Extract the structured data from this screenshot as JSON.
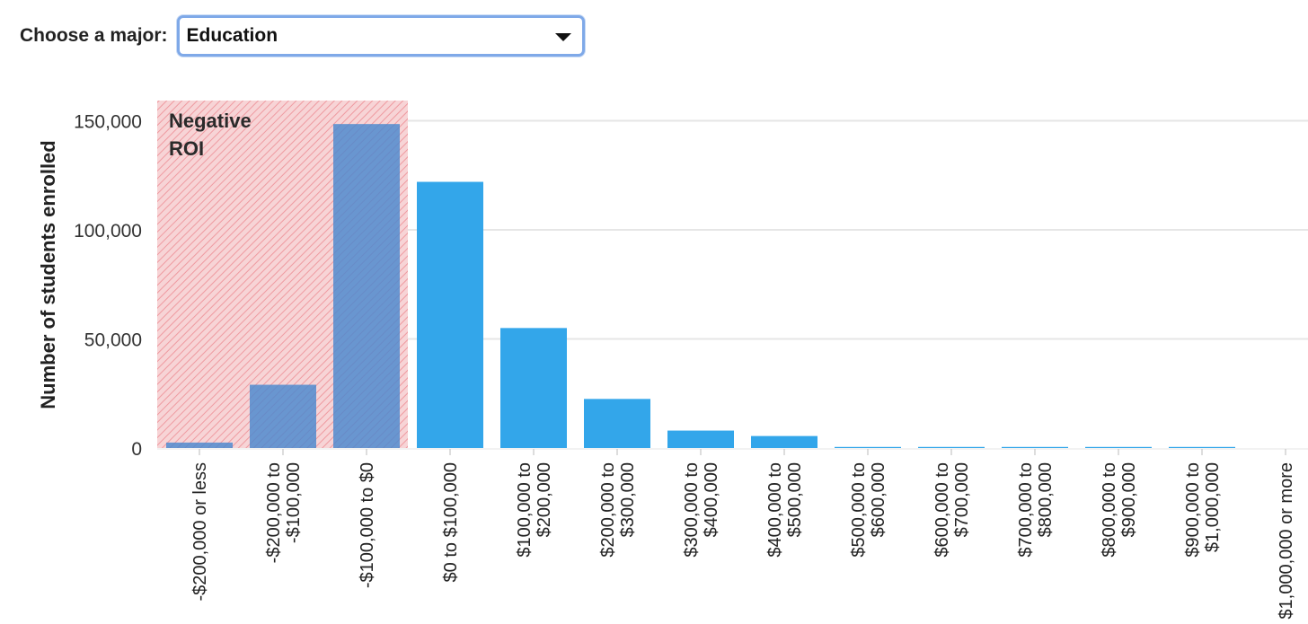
{
  "filter": {
    "label": "Choose a major:",
    "selected": "Education"
  },
  "colors": {
    "bar": "#33a6ea",
    "negative_bar": "#4a88cf",
    "negative_zone": "#f7d4d6",
    "negative_hatch": "#ef9aa0",
    "grid": "#e6e6e6"
  },
  "chart_data": {
    "type": "bar",
    "title": "",
    "xlabel": "",
    "ylabel": "Number of students enrolled",
    "ylim": [
      0,
      160000
    ],
    "yticks": [
      0,
      50000,
      100000,
      150000
    ],
    "ytick_labels": [
      "0",
      "50,000",
      "100,000",
      "150,000"
    ],
    "grid": true,
    "annotation": {
      "line1": "Negative",
      "line2": "ROI",
      "applies_to_categories": [
        "-$200,000 or less",
        "-$200,000 to -$100,000",
        "-$100,000 to $0"
      ]
    },
    "categories": [
      "-$200,000 or less",
      "-$200,000 to -$100,000",
      "-$100,000 to $0",
      "$0 to $100,000",
      "$100,000 to $200,000",
      "$200,000 to $300,000",
      "$300,000 to $400,000",
      "$400,000 to $500,000",
      "$500,000 to $600,000",
      "$600,000 to $700,000",
      "$700,000 to $800,000",
      "$800,000 to $900,000",
      "$900,000 to $1,000,000",
      "$1,000,000 or more"
    ],
    "category_label_lines": [
      [
        "-$200,000 or less"
      ],
      [
        "-$200,000 to",
        "-$100,000"
      ],
      [
        "-$100,000 to $0"
      ],
      [
        "$0 to $100,000"
      ],
      [
        "$100,000 to",
        "$200,000"
      ],
      [
        "$200,000 to",
        "$300,000"
      ],
      [
        "$300,000 to",
        "$400,000"
      ],
      [
        "$400,000 to",
        "$500,000"
      ],
      [
        "$500,000 to",
        "$600,000"
      ],
      [
        "$600,000 to",
        "$700,000"
      ],
      [
        "$700,000 to",
        "$800,000"
      ],
      [
        "$800,000 to",
        "$900,000"
      ],
      [
        "$900,000 to",
        "$1,000,000"
      ],
      [
        "$1,000,000 or more"
      ]
    ],
    "values": [
      2500,
      29000,
      148500,
      122000,
      55000,
      22500,
      8000,
      5500,
      300,
      500,
      200,
      200,
      200,
      0
    ]
  }
}
